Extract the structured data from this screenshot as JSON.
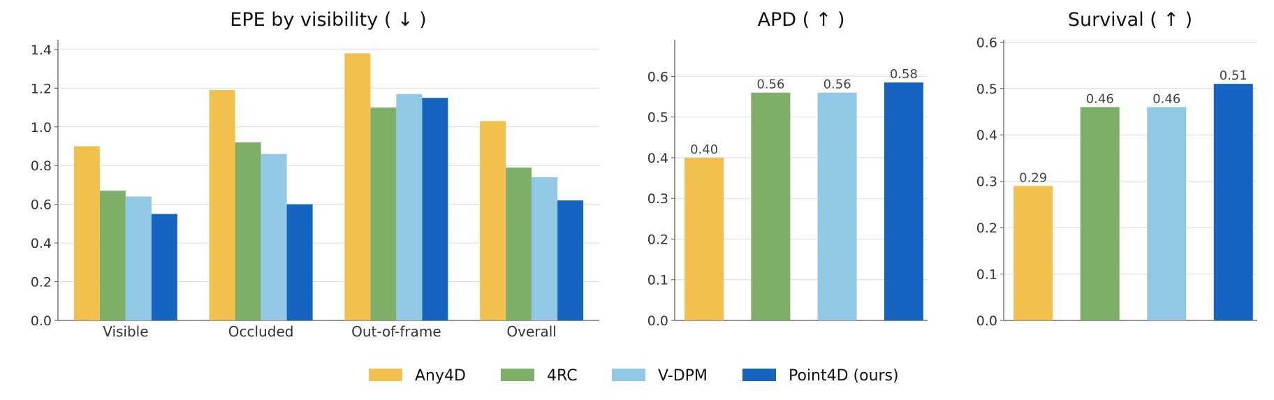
{
  "series_colors": {
    "Any4D": "#F2C04D",
    "4RC": "#7DAF68",
    "V-DPM": "#90C8E6",
    "Point4D (ours)": "#1565C0"
  },
  "legend": [
    "Any4D",
    "4RC",
    "V-DPM",
    "Point4D (ours)"
  ],
  "chart_data": [
    {
      "type": "bar",
      "title": "EPE by visibility ( ↓ )",
      "categories": [
        "Visible",
        "Occluded",
        "Out-of-frame",
        "Overall"
      ],
      "series": [
        {
          "name": "Any4D",
          "values": [
            0.9,
            1.19,
            1.38,
            1.03
          ]
        },
        {
          "name": "4RC",
          "values": [
            0.67,
            0.92,
            1.1,
            0.79
          ]
        },
        {
          "name": "V-DPM",
          "values": [
            0.64,
            0.86,
            1.17,
            0.74
          ]
        },
        {
          "name": "Point4D (ours)",
          "values": [
            0.55,
            0.6,
            1.15,
            0.62
          ]
        }
      ],
      "ylim": [
        0,
        1.45
      ],
      "yticks": [
        "0.0",
        "0.2",
        "0.4",
        "0.6",
        "0.8",
        "1.0",
        "1.2",
        "1.4"
      ],
      "grid": true
    },
    {
      "type": "bar",
      "title": "APD ( ↑ )",
      "categories": [
        "Any4D",
        "4RC",
        "V-DPM",
        "Point4D (ours)"
      ],
      "values": [
        0.4,
        0.56,
        0.56,
        0.585
      ],
      "data_labels": [
        "0.40",
        "0.56",
        "0.56",
        "0.58"
      ],
      "ylim": [
        0,
        0.69
      ],
      "yticks": [
        "0.0",
        "0.1",
        "0.2",
        "0.3",
        "0.4",
        "0.5",
        "0.6"
      ],
      "grid": true
    },
    {
      "type": "bar",
      "title": "Survival ( ↑ )",
      "categories": [
        "Any4D",
        "4RC",
        "V-DPM",
        "Point4D (ours)"
      ],
      "values": [
        0.29,
        0.46,
        0.46,
        0.51
      ],
      "data_labels": [
        "0.29",
        "0.46",
        "0.46",
        "0.51"
      ],
      "ylim": [
        0,
        0.605
      ],
      "yticks": [
        "0.0",
        "0.1",
        "0.2",
        "0.3",
        "0.4",
        "0.5",
        "0.6"
      ],
      "grid": true
    }
  ]
}
